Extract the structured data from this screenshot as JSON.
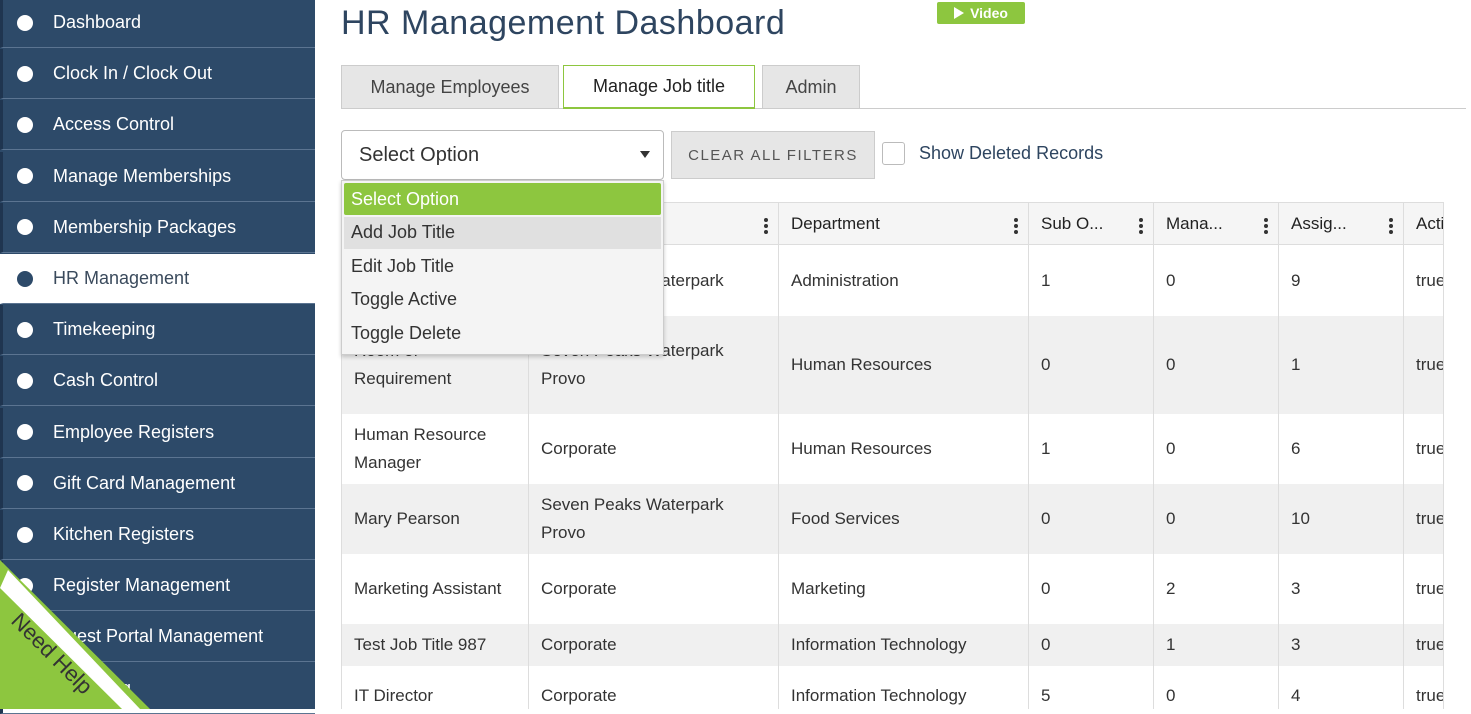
{
  "sidebar": {
    "items": [
      "Dashboard",
      "Clock In / Clock Out",
      "Access Control",
      "Manage Memberships",
      "Membership Packages",
      "HR Management",
      "Timekeeping",
      "Cash Control",
      "Employee Registers",
      "Gift Card Management",
      "Kitchen Registers",
      "Register Management",
      "Guest Portal Management",
      "Reporting"
    ],
    "active": 5
  },
  "header": {
    "title": "HR Management Dashboard",
    "video_button": "Video"
  },
  "tabs": {
    "items": [
      "Manage Employees",
      "Manage Job title",
      "Admin"
    ],
    "active": 1
  },
  "filters": {
    "select": "Select Option",
    "clear_button": "CLEAR ALL FILTERS",
    "checkbox_label": "Show Deleted Records"
  },
  "dropdown": {
    "options": [
      "Select Option",
      "Add Job Title",
      "Edit Job Title",
      "Toggle Active",
      "Toggle Delete"
    ],
    "selected": 0,
    "hovered": 1
  },
  "table": {
    "headers": [
      null,
      null,
      "Department",
      "Sub O...",
      "Mana...",
      "Assig...",
      "Active"
    ],
    "rows": [
      [
        null,
        "Seven Peaks Waterpark",
        "Administration",
        "1",
        "0",
        "9",
        "true"
      ],
      [
        "Room of Requirement",
        "Seven Peaks Waterpark Provo",
        "Human Resources",
        "0",
        "0",
        "1",
        "true"
      ],
      [
        "Human Resource Manager",
        "Corporate",
        "Human Resources",
        "1",
        "0",
        "6",
        "true"
      ],
      [
        "Mary Pearson",
        "Seven Peaks Waterpark Provo",
        "Food Services",
        "0",
        "0",
        "10",
        "true"
      ],
      [
        "Marketing Assistant",
        "Corporate",
        "Marketing",
        "0",
        "2",
        "3",
        "true"
      ],
      [
        "Test Job Title 987",
        "Corporate",
        "Information Technology",
        "0",
        "1",
        "3",
        "true"
      ],
      [
        "IT Director",
        "Corporate",
        "Information Technology",
        "5",
        "0",
        "4",
        "true"
      ]
    ]
  },
  "help": {
    "label": "Need Help",
    "icon": "?"
  }
}
